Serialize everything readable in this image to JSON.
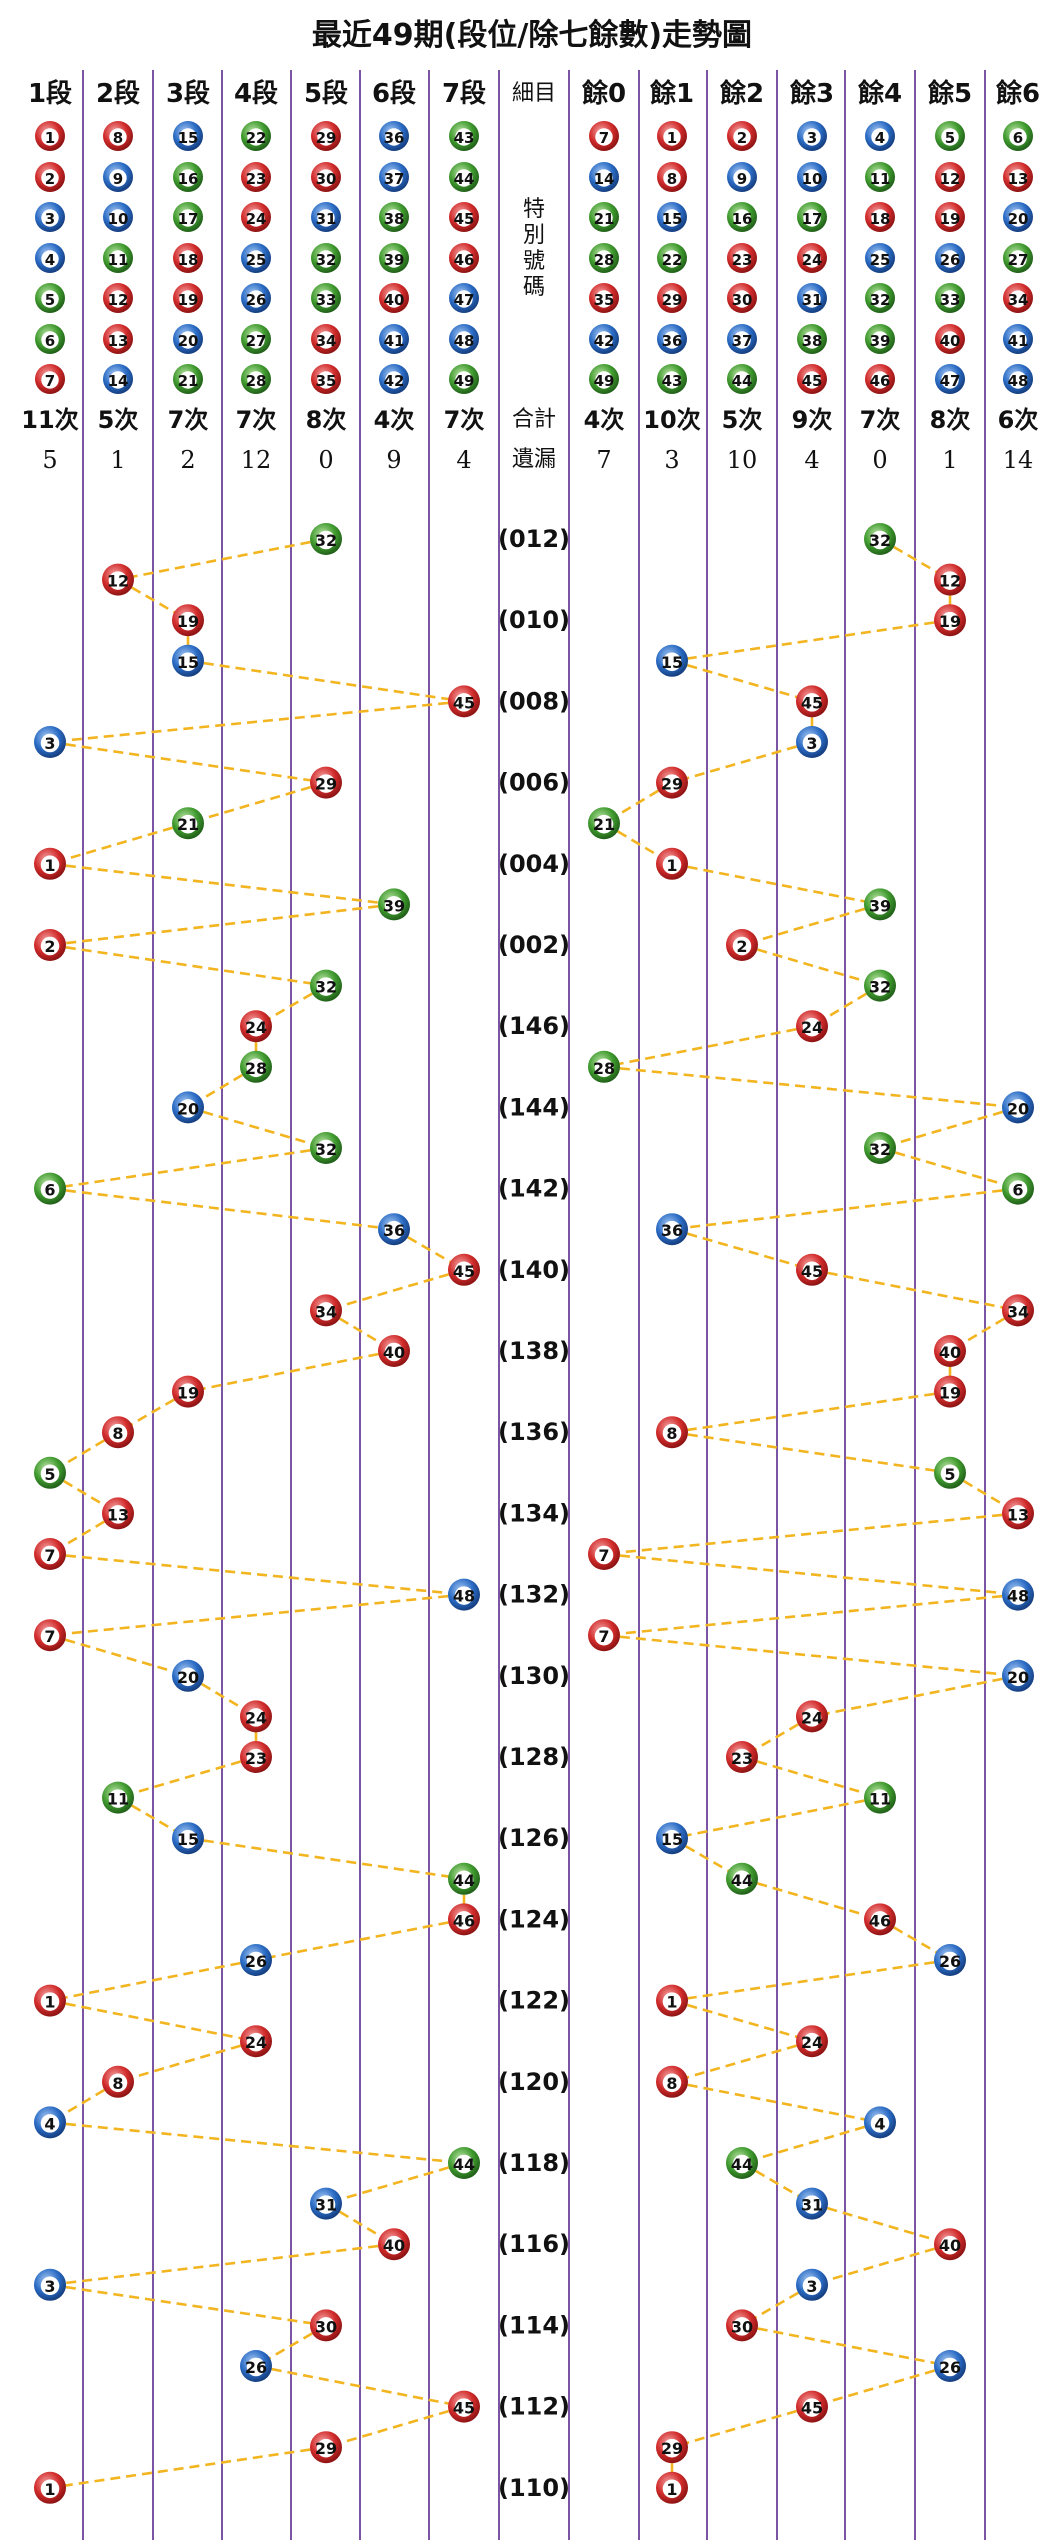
{
  "title": "最近49期(段位/除七餘數)走勢圖",
  "headers_left": [
    "1段",
    "2段",
    "3段",
    "4段",
    "5段",
    "6段",
    "7段"
  ],
  "headers_right": [
    "餘0",
    "餘1",
    "餘2",
    "餘3",
    "餘4",
    "餘5",
    "餘6"
  ],
  "mid_header": "細目",
  "special_lines": [
    "特",
    "別",
    "號",
    "碼"
  ],
  "total_label": "合計",
  "miss_label": "遺漏",
  "counts_left": [
    "11次",
    "5次",
    "7次",
    "7次",
    "8次",
    "4次",
    "7次"
  ],
  "counts_right": [
    "4次",
    "10次",
    "5次",
    "9次",
    "7次",
    "8次",
    "6次"
  ],
  "miss_left": [
    "5",
    "1",
    "2",
    "12",
    "0",
    "9",
    "4"
  ],
  "miss_right": [
    "7",
    "3",
    "10",
    "4",
    "0",
    "1",
    "14"
  ],
  "colors": {
    "red": "#d12b2b",
    "blue": "#2a6bc4",
    "green": "#3f9a2e",
    "line": "#f2b520",
    "grid": "#5a2a8c"
  },
  "chart_data": {
    "type": "scatter",
    "description_axis": "period",
    "period_labels": [
      "(012)",
      "(010)",
      "(008)",
      "(006)",
      "(004)",
      "(002)",
      "(146)",
      "(144)",
      "(142)",
      "(140)",
      "(138)",
      "(136)",
      "(134)",
      "(132)",
      "(130)",
      "(128)",
      "(126)",
      "(124)",
      "(122)",
      "(120)",
      "(118)",
      "(116)",
      "(114)",
      "(112)",
      "(110)"
    ],
    "special_numbers": [
      32,
      12,
      19,
      15,
      45,
      3,
      29,
      21,
      1,
      39,
      2,
      32,
      24,
      28,
      20,
      32,
      6,
      36,
      45,
      34,
      40,
      19,
      8,
      5,
      13,
      7,
      48,
      7,
      20,
      24,
      23,
      11,
      15,
      44,
      46,
      26,
      1,
      24,
      8,
      4,
      44,
      31,
      40,
      3,
      30,
      26,
      45,
      29,
      1
    ]
  }
}
